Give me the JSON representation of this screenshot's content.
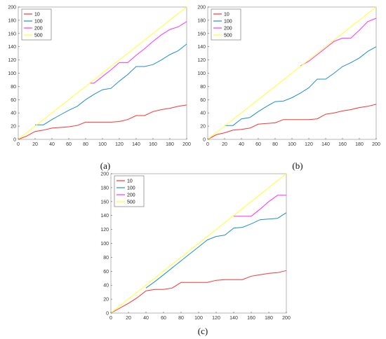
{
  "chart_data": [
    {
      "type": "line",
      "caption": "(a)",
      "xlim": [
        0,
        200
      ],
      "ylim": [
        0,
        200
      ],
      "xticks": [
        0,
        20,
        40,
        60,
        80,
        100,
        120,
        140,
        160,
        180,
        200
      ],
      "yticks": [
        0,
        20,
        40,
        60,
        80,
        100,
        120,
        140,
        160,
        180,
        200
      ],
      "grid": false,
      "legend": "top-left",
      "series": [
        {
          "name": "10",
          "color": "#ff3333",
          "x": [
            0,
            10,
            20,
            30,
            40,
            50,
            60,
            70,
            80,
            90,
            100,
            110,
            120,
            130,
            140,
            150,
            160,
            170,
            180,
            190,
            200
          ],
          "y": [
            0,
            5,
            12,
            14,
            17,
            18,
            19,
            21,
            26,
            26,
            26,
            26,
            27,
            30,
            36,
            36,
            42,
            45,
            47,
            50,
            52
          ]
        },
        {
          "name": "100",
          "color": "#1f8fcf",
          "x": [
            20,
            30,
            40,
            50,
            60,
            70,
            80,
            90,
            100,
            110,
            120,
            130,
            140,
            150,
            160,
            170,
            180,
            190,
            200
          ],
          "y": [
            22,
            22,
            30,
            37,
            44,
            50,
            60,
            68,
            75,
            77,
            88,
            98,
            110,
            110,
            113,
            120,
            128,
            134,
            144
          ]
        },
        {
          "name": "200",
          "color": "#ff33ff",
          "x": [
            85,
            90,
            100,
            110,
            120,
            130,
            140,
            150,
            160,
            170,
            180,
            190,
            200
          ],
          "y": [
            85,
            85,
            95,
            105,
            116,
            116,
            127,
            137,
            148,
            158,
            166,
            170,
            178
          ]
        },
        {
          "name": "500",
          "color": "#ffff33",
          "x": [
            0,
            200
          ],
          "y": [
            0,
            200
          ]
        }
      ]
    },
    {
      "type": "line",
      "caption": "(b)",
      "xlim": [
        0,
        200
      ],
      "ylim": [
        0,
        200
      ],
      "xticks": [
        0,
        20,
        40,
        60,
        80,
        100,
        120,
        140,
        160,
        180,
        200
      ],
      "yticks": [
        0,
        20,
        40,
        60,
        80,
        100,
        120,
        140,
        160,
        180,
        200
      ],
      "grid": false,
      "legend": "top-left",
      "series": [
        {
          "name": "10",
          "color": "#ff3333",
          "x": [
            0,
            10,
            20,
            30,
            40,
            50,
            60,
            70,
            80,
            90,
            100,
            110,
            120,
            130,
            140,
            150,
            160,
            170,
            180,
            190,
            200
          ],
          "y": [
            0,
            7,
            10,
            14,
            15,
            17,
            23,
            24,
            25,
            30,
            30,
            30,
            30,
            31,
            38,
            40,
            43,
            45,
            48,
            50,
            53
          ]
        },
        {
          "name": "100",
          "color": "#1f8fcf",
          "x": [
            20,
            30,
            40,
            50,
            60,
            70,
            80,
            90,
            100,
            110,
            120,
            130,
            140,
            150,
            160,
            170,
            180,
            190,
            200
          ],
          "y": [
            21,
            21,
            31,
            33,
            42,
            50,
            57,
            58,
            63,
            70,
            78,
            91,
            91,
            100,
            110,
            116,
            123,
            133,
            140
          ]
        },
        {
          "name": "200",
          "color": "#ff33ff",
          "x": [
            110,
            120,
            130,
            140,
            150,
            160,
            170,
            180,
            190,
            200
          ],
          "y": [
            111,
            118,
            128,
            138,
            148,
            153,
            153,
            165,
            178,
            183
          ]
        },
        {
          "name": "500",
          "color": "#ffff33",
          "x": [
            0,
            200
          ],
          "y": [
            0,
            200
          ]
        }
      ]
    },
    {
      "type": "line",
      "caption": "(c)",
      "xlim": [
        0,
        200
      ],
      "ylim": [
        0,
        200
      ],
      "xticks": [
        0,
        20,
        40,
        60,
        80,
        100,
        120,
        140,
        160,
        180,
        200
      ],
      "yticks": [
        0,
        20,
        40,
        60,
        80,
        100,
        120,
        140,
        160,
        180,
        200
      ],
      "grid": false,
      "legend": "top-left",
      "series": [
        {
          "name": "10",
          "color": "#ff3333",
          "x": [
            0,
            10,
            20,
            30,
            40,
            50,
            60,
            70,
            80,
            90,
            100,
            110,
            120,
            130,
            140,
            150,
            160,
            170,
            180,
            190,
            200
          ],
          "y": [
            0,
            7,
            14,
            22,
            32,
            34,
            34,
            36,
            44,
            44,
            44,
            44,
            47,
            48,
            48,
            48,
            53,
            55,
            57,
            58,
            61
          ]
        },
        {
          "name": "100",
          "color": "#1f8fcf",
          "x": [
            40,
            50,
            60,
            70,
            80,
            90,
            100,
            110,
            120,
            130,
            140,
            150,
            160,
            170,
            180,
            190,
            200
          ],
          "y": [
            36,
            45,
            55,
            65,
            75,
            85,
            95,
            105,
            110,
            112,
            122,
            123,
            128,
            134,
            135,
            136,
            144
          ]
        },
        {
          "name": "200",
          "color": "#ff33ff",
          "x": [
            140,
            150,
            160,
            170,
            180,
            190,
            200
          ],
          "y": [
            139,
            139,
            139,
            149,
            160,
            169,
            169
          ]
        },
        {
          "name": "500",
          "color": "#ffff33",
          "x": [
            0,
            200
          ],
          "y": [
            0,
            200
          ]
        }
      ]
    }
  ]
}
